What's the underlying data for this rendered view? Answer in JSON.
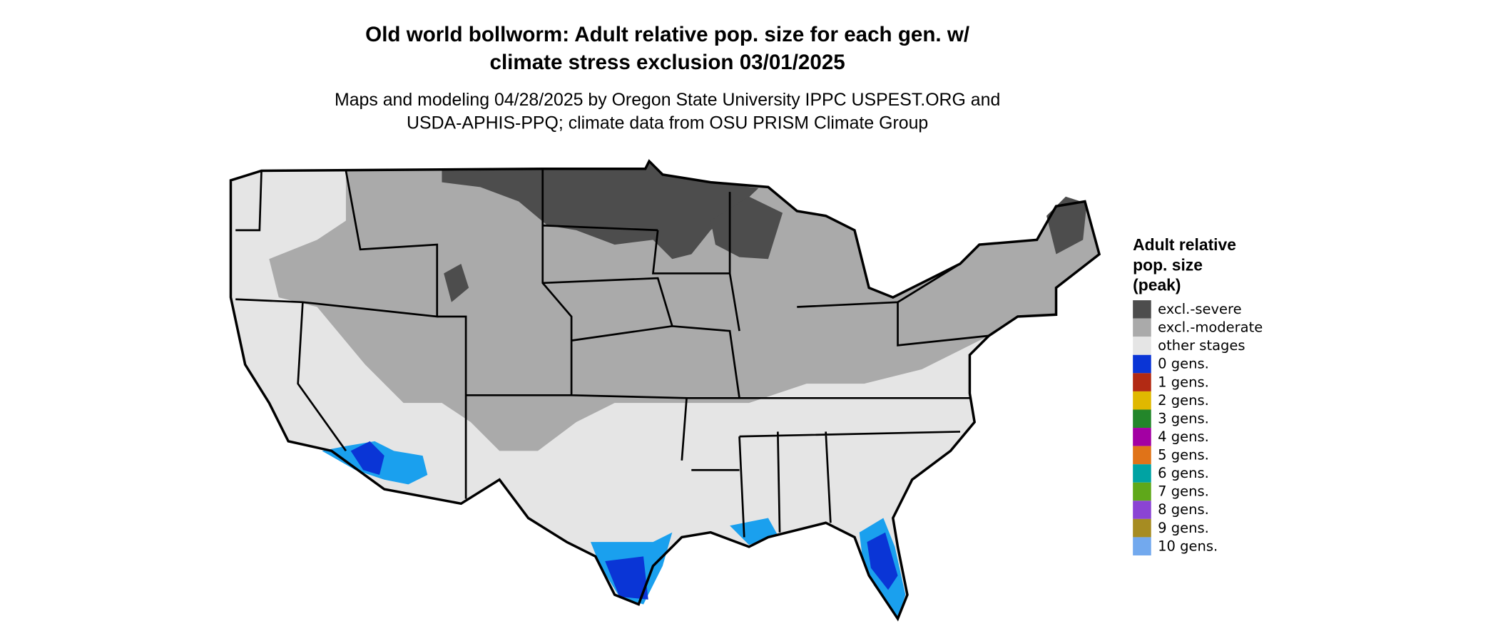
{
  "title": [
    "Old world bollworm: Adult relative pop. size for each gen. w/",
    "climate stress exclusion 03/01/2025"
  ],
  "subtitle": [
    "Maps and modeling 04/28/2025 by Oregon State University IPPC USPEST.ORG and",
    "USDA-APHIS-PPQ; climate data from OSU PRISM Climate Group"
  ],
  "legend": {
    "title": [
      "Adult relative",
      "pop. size",
      "(peak)"
    ],
    "items": [
      {
        "label": "excl.-severe",
        "color": "#4d4d4d"
      },
      {
        "label": "excl.-moderate",
        "color": "#aaaaaa"
      },
      {
        "label": "other stages",
        "color": "#e5e5e5"
      },
      {
        "label": "0 gens.",
        "color": "#0a35d6"
      },
      {
        "label": "1 gens.",
        "color": "#b22a14"
      },
      {
        "label": "2 gens.",
        "color": "#e0b800"
      },
      {
        "label": "3 gens.",
        "color": "#23862a"
      },
      {
        "label": "4 gens.",
        "color": "#a300a3"
      },
      {
        "label": "5 gens.",
        "color": "#e07318"
      },
      {
        "label": "6 gens.",
        "color": "#00a3a3"
      },
      {
        "label": "7 gens.",
        "color": "#5fa81a"
      },
      {
        "label": "8 gens.",
        "color": "#8b44d4"
      },
      {
        "label": "9 gens.",
        "color": "#a68c22"
      },
      {
        "label": "10 gens.",
        "color": "#72a9ee"
      }
    ]
  }
}
